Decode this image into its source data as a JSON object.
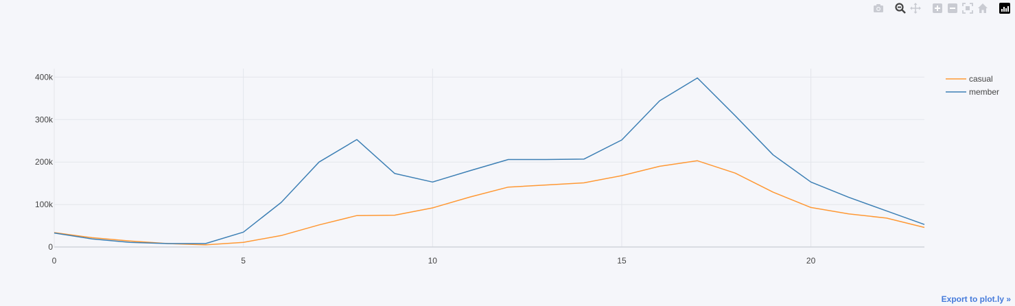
{
  "modebar": {
    "buttons": [
      {
        "name": "camera-icon"
      },
      {
        "name": "zoom-icon"
      },
      {
        "name": "pan-icon"
      },
      {
        "name": "zoom-in-icon"
      },
      {
        "name": "zoom-out-icon"
      },
      {
        "name": "autoscale-icon"
      },
      {
        "name": "reset-axes-icon"
      },
      {
        "name": "plotly-logo-icon"
      }
    ]
  },
  "export_label": "Export to plot.ly »",
  "chart_data": {
    "type": "line",
    "x": [
      0,
      1,
      2,
      3,
      4,
      5,
      6,
      7,
      8,
      9,
      10,
      11,
      12,
      13,
      14,
      15,
      16,
      17,
      18,
      19,
      20,
      21,
      22,
      23
    ],
    "xlim": [
      0,
      23
    ],
    "ylim": [
      0,
      420000
    ],
    "xticks": [
      0,
      5,
      10,
      15,
      20
    ],
    "yticks": [
      0,
      100000,
      200000,
      300000,
      400000
    ],
    "ytick_labels": [
      "0",
      "100k",
      "200k",
      "300k",
      "400k"
    ],
    "grid": true,
    "legend_position": "top-right",
    "series": [
      {
        "name": "casual",
        "color": "#ff9833",
        "values": [
          34000,
          22000,
          14000,
          8000,
          5000,
          11000,
          27000,
          52000,
          74000,
          75000,
          92000,
          118000,
          141000,
          146000,
          151000,
          168000,
          190000,
          203000,
          174000,
          129000,
          93000,
          78000,
          68000,
          46000
        ]
      },
      {
        "name": "member",
        "color": "#3c7fb4",
        "values": [
          33000,
          19000,
          11000,
          8000,
          8000,
          35000,
          105000,
          200000,
          253000,
          173000,
          153000,
          180000,
          206000,
          206000,
          207000,
          252000,
          344000,
          398000,
          309000,
          217000,
          153000,
          117000,
          85000,
          53000
        ]
      }
    ]
  }
}
